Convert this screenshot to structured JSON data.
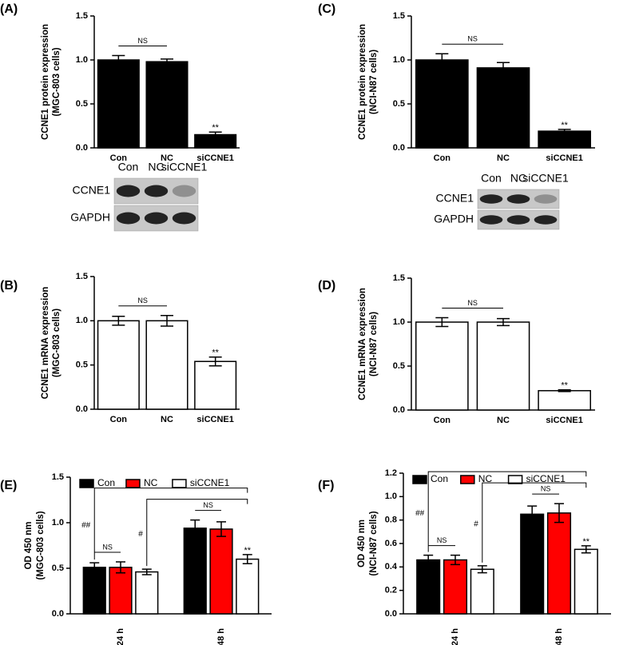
{
  "chart_data": [
    {
      "type": "bar",
      "panel_label": "(A)",
      "ylabel": [
        "CCNE1 protein expression",
        "(MGC-803 cells)"
      ],
      "categories": [
        "Con",
        "NC",
        "siCCNE1"
      ],
      "values": [
        1.0,
        0.98,
        0.15
      ],
      "errors": [
        0.05,
        0.03,
        0.03
      ],
      "color": "#000000",
      "ylim": [
        0,
        1.5
      ],
      "yticks": [
        {
          "value": 0,
          "label": "0.0"
        },
        0.5,
        {
          "value": 1,
          "label": "1.0"
        },
        1.5
      ],
      "brackets": [
        {
          "label": "NS",
          "from": 0,
          "to": 1
        }
      ],
      "stars": [
        {
          "label": "**",
          "index": 2
        }
      ],
      "blot": {
        "lanes": [
          "Con",
          "NC",
          "siCCNE1"
        ],
        "rows": [
          "CCNE1",
          "GAPDH"
        ]
      }
    },
    {
      "type": "bar",
      "panel_label": "(C)",
      "ylabel": [
        "CCNE1 protein expression",
        "(NCI-N87 cells)"
      ],
      "categories": [
        "Con",
        "NC",
        "siCCNE1"
      ],
      "values": [
        1.0,
        0.91,
        0.19
      ],
      "errors": [
        0.07,
        0.06,
        0.02
      ],
      "color": "#000000",
      "ylim": [
        0,
        1.5
      ],
      "yticks": [
        {
          "value": 0,
          "label": "0.0"
        },
        0.5,
        {
          "value": 1,
          "label": "1.0"
        },
        1.5
      ],
      "brackets": [
        {
          "label": "NS",
          "from": 0,
          "to": 1
        }
      ],
      "stars": [
        {
          "label": "**",
          "index": 2
        }
      ],
      "blot": {
        "lanes": [
          "Con",
          "NC",
          "siCCNE1"
        ],
        "rows": [
          "CCNE1",
          "GAPDH"
        ]
      }
    },
    {
      "type": "bar",
      "panel_label": "(B)",
      "ylabel": [
        "CCNE1 mRNA expression",
        "(MGC-803 cells)"
      ],
      "categories": [
        "Con",
        "NC",
        "siCCNE1"
      ],
      "values": [
        1.0,
        1.0,
        0.54
      ],
      "errors": [
        0.05,
        0.06,
        0.05
      ],
      "color": "#ffffff",
      "ylim": [
        0,
        1.5
      ],
      "yticks": [
        {
          "value": 0,
          "label": "0.0"
        },
        0.5,
        {
          "value": 1,
          "label": "1.0"
        },
        1.5
      ],
      "brackets": [
        {
          "label": "NS",
          "from": 0,
          "to": 1
        }
      ],
      "stars": [
        {
          "label": "**",
          "index": 2
        }
      ]
    },
    {
      "type": "bar",
      "panel_label": "(D)",
      "ylabel": [
        "CCNE1 mRNA expression",
        "(NCI-N87 cells)"
      ],
      "categories": [
        "Con",
        "NC",
        "siCCNE1"
      ],
      "values": [
        1.0,
        1.0,
        0.22
      ],
      "errors": [
        0.05,
        0.04,
        0.01
      ],
      "color": "#ffffff",
      "ylim": [
        0,
        1.5
      ],
      "yticks": [
        {
          "value": 0,
          "label": "0.0"
        },
        0.5,
        {
          "value": 1,
          "label": "1.0"
        },
        1.5
      ],
      "brackets": [
        {
          "label": "NS",
          "from": 0,
          "to": 1
        }
      ],
      "stars": [
        {
          "label": "**",
          "index": 2
        }
      ]
    },
    {
      "type": "grouped_bar",
      "panel_label": "(E)",
      "ylabel": [
        "OD 450 nm",
        "(MGC-803 cells)"
      ],
      "categories": [
        "24 h",
        "48 h"
      ],
      "series": [
        {
          "name": "Con",
          "color": "#000000",
          "values": [
            0.51,
            0.94
          ],
          "errors": [
            0.05,
            0.09
          ]
        },
        {
          "name": "NC",
          "color": "#ff0000",
          "values": [
            0.51,
            0.93
          ],
          "errors": [
            0.06,
            0.08
          ]
        },
        {
          "name": "siCCNE1",
          "color": "#ffffff",
          "values": [
            0.46,
            0.6
          ],
          "errors": [
            0.03,
            0.05
          ]
        }
      ],
      "ylim": [
        0,
        1.5
      ],
      "yticks": [
        {
          "value": 0,
          "label": "0.0"
        },
        0.5,
        {
          "value": 1,
          "label": "1.0"
        },
        1.5
      ],
      "brackets": [
        {
          "label": "NS",
          "from": [
            0,
            0
          ],
          "to": [
            0,
            1
          ]
        },
        {
          "label": "NS",
          "from": [
            1,
            0
          ],
          "to": [
            1,
            1
          ]
        },
        {
          "label": "#",
          "from": [
            0,
            2
          ],
          "to": [
            1,
            2
          ]
        },
        {
          "label": "##",
          "from": [
            0,
            0
          ],
          "to": [
            1,
            2
          ]
        }
      ],
      "stars": [
        {
          "label": "**",
          "index": [
            1,
            2
          ]
        }
      ]
    },
    {
      "type": "grouped_bar",
      "panel_label": "(F)",
      "ylabel": [
        "OD 450 nm",
        "(NCI-N87 cells)"
      ],
      "categories": [
        "24 h",
        "48 h"
      ],
      "series": [
        {
          "name": "Con",
          "color": "#000000",
          "values": [
            0.46,
            0.85
          ],
          "errors": [
            0.04,
            0.07
          ]
        },
        {
          "name": "NC",
          "color": "#ff0000",
          "values": [
            0.46,
            0.86
          ],
          "errors": [
            0.04,
            0.08
          ]
        },
        {
          "name": "siCCNE1",
          "color": "#ffffff",
          "values": [
            0.38,
            0.55
          ],
          "errors": [
            0.03,
            0.03
          ]
        }
      ],
      "ylim": [
        0,
        1.2
      ],
      "yticks": [
        {
          "value": 0,
          "label": "0.0"
        },
        0.2,
        0.4,
        0.6,
        0.8,
        {
          "value": 1,
          "label": "1.0"
        },
        1.2
      ],
      "brackets": [
        {
          "label": "NS",
          "from": [
            0,
            0
          ],
          "to": [
            0,
            1
          ]
        },
        {
          "label": "NS",
          "from": [
            1,
            0
          ],
          "to": [
            1,
            1
          ]
        },
        {
          "label": "#",
          "from": [
            0,
            2
          ],
          "to": [
            1,
            2
          ]
        },
        {
          "label": "##",
          "from": [
            0,
            0
          ],
          "to": [
            1,
            2
          ]
        }
      ],
      "stars": [
        {
          "label": "**",
          "index": [
            1,
            2
          ]
        }
      ]
    }
  ]
}
